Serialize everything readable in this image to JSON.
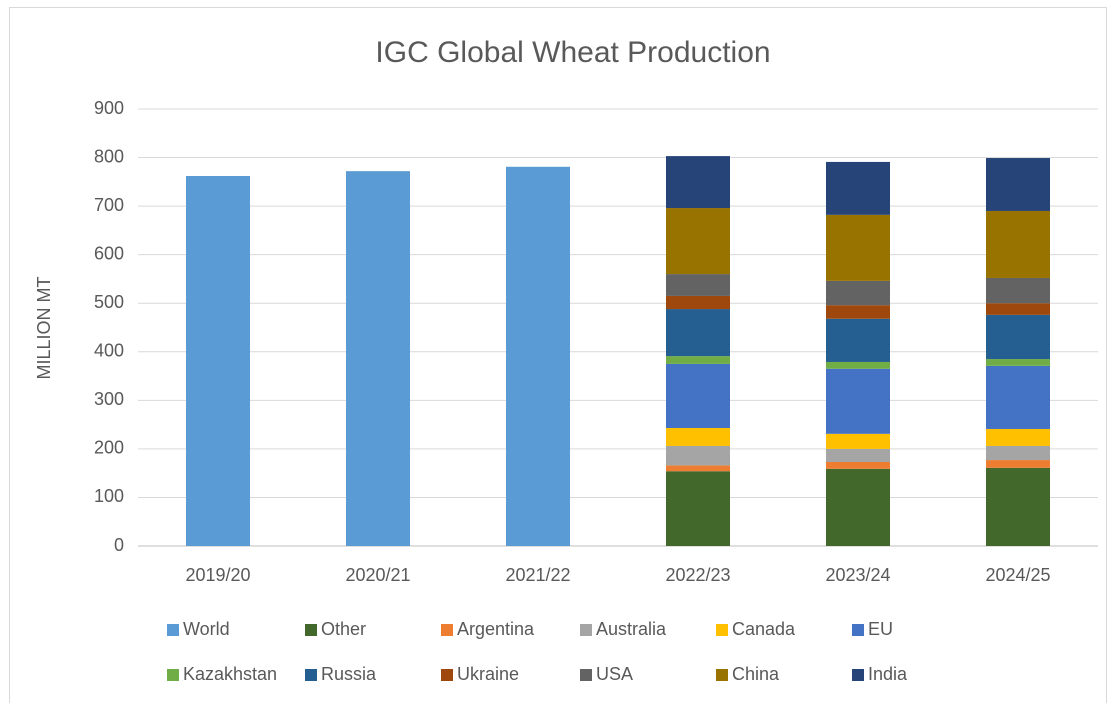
{
  "chart_data": {
    "type": "stacked_bar",
    "title": "IGC Global Wheat Production",
    "y_label": "MILLION MT",
    "categories": [
      "2019/20",
      "2020/21",
      "2021/22",
      "2022/23",
      "2023/24",
      "2024/25"
    ],
    "ylim": [
      0,
      900
    ],
    "yticks": [
      0,
      100,
      200,
      300,
      400,
      500,
      600,
      700,
      800,
      900
    ],
    "grid": true,
    "series": [
      {
        "name": "World",
        "color": "#5b9bd5",
        "values": [
          762,
          772,
          781,
          null,
          null,
          null
        ]
      },
      {
        "name": "Other",
        "color": "#43682b",
        "values": [
          null,
          null,
          null,
          154,
          159,
          161
        ]
      },
      {
        "name": "Argentina",
        "color": "#ed7d31",
        "values": [
          null,
          null,
          null,
          12,
          14,
          16
        ]
      },
      {
        "name": "Australia",
        "color": "#a5a5a5",
        "values": [
          null,
          null,
          null,
          40,
          27,
          29
        ]
      },
      {
        "name": "Canada",
        "color": "#ffc000",
        "values": [
          null,
          null,
          null,
          37,
          31,
          35
        ]
      },
      {
        "name": "EU",
        "color": "#4472c4",
        "values": [
          null,
          null,
          null,
          132,
          134,
          130
        ]
      },
      {
        "name": "Kazakhstan",
        "color": "#70ad47",
        "values": [
          null,
          null,
          null,
          16,
          14,
          14
        ]
      },
      {
        "name": "Russia",
        "color": "#255e91",
        "values": [
          null,
          null,
          null,
          97,
          89,
          91
        ]
      },
      {
        "name": "Ukraine",
        "color": "#9e480e",
        "values": [
          null,
          null,
          null,
          27,
          28,
          24
        ]
      },
      {
        "name": "USA",
        "color": "#636363",
        "values": [
          null,
          null,
          null,
          45,
          50,
          52
        ]
      },
      {
        "name": "China",
        "color": "#997300",
        "values": [
          null,
          null,
          null,
          136,
          136,
          138
        ]
      },
      {
        "name": "India",
        "color": "#264478",
        "values": [
          null,
          null,
          null,
          107,
          109,
          109
        ]
      }
    ]
  }
}
